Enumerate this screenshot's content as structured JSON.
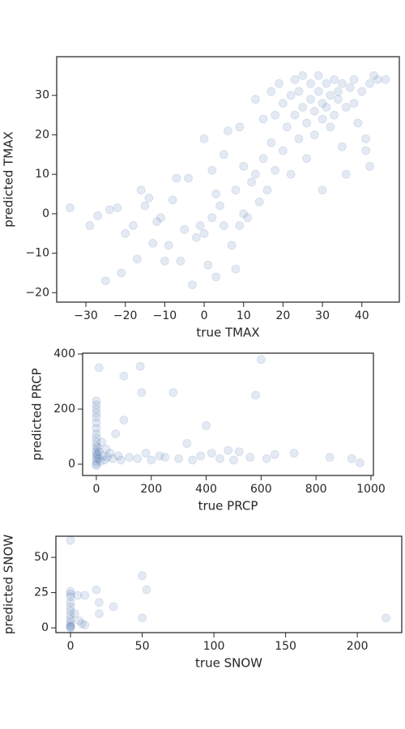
{
  "chart_data": [
    {
      "type": "scatter",
      "x_label": "true TMAX",
      "y_label": "predicted TMAX",
      "color": "#4c72b0",
      "xlim": [
        -37.4,
        49.5
      ],
      "ylim": [
        -22.4,
        39.8
      ],
      "xticks": [
        {
          "value": -30,
          "label": "−30"
        },
        {
          "value": -20,
          "label": "−20"
        },
        {
          "value": -10,
          "label": "−10"
        },
        0,
        10,
        20,
        30,
        40
      ],
      "yticks": [
        {
          "value": -20,
          "label": "−20"
        },
        {
          "value": -10,
          "label": "−10"
        },
        0,
        10,
        20,
        30
      ],
      "x": [
        -34,
        -29,
        -27,
        -25,
        -24,
        -22,
        -21,
        -20,
        -18,
        -17,
        -16,
        -15,
        -14,
        -13,
        -12,
        -11,
        -10,
        -9,
        -8,
        -7,
        -6,
        -5,
        -4,
        -3,
        -2,
        -1,
        0,
        0,
        1,
        2,
        2,
        3,
        3,
        4,
        5,
        5,
        6,
        7,
        8,
        8,
        9,
        9,
        10,
        10,
        11,
        12,
        13,
        13,
        14,
        15,
        15,
        16,
        17,
        17,
        18,
        18,
        19,
        20,
        20,
        21,
        22,
        22,
        23,
        23,
        24,
        24,
        25,
        25,
        26,
        26,
        27,
        27,
        28,
        28,
        29,
        29,
        30,
        30,
        30,
        31,
        31,
        32,
        32,
        33,
        33,
        34,
        34,
        35,
        35,
        36,
        37,
        38,
        38,
        39,
        40,
        41,
        42,
        43,
        44,
        46,
        42,
        41,
        36
      ],
      "y": [
        1.5,
        -3,
        -0.5,
        -17,
        1,
        1.5,
        -15,
        -5,
        -3,
        -11.5,
        6,
        2,
        4,
        -7.5,
        -2,
        -1,
        -12,
        -8,
        3.5,
        9,
        -12,
        -4,
        9,
        -18,
        -6,
        -3,
        19,
        -5,
        -13,
        -1,
        11,
        -16,
        5,
        2,
        -3,
        15,
        21,
        -8,
        -14,
        6,
        22,
        -3,
        0,
        12,
        -1,
        8,
        10,
        29,
        3,
        14,
        24,
        6,
        18,
        31,
        11,
        25,
        33,
        16,
        28,
        22,
        30,
        10,
        25,
        34,
        19,
        31,
        27,
        35,
        23,
        14,
        29,
        33,
        26,
        20,
        31,
        35,
        24,
        6,
        28,
        33,
        27,
        30,
        22,
        34,
        25,
        29,
        31,
        17,
        33,
        27,
        32,
        34,
        28,
        23,
        31,
        16,
        33,
        35,
        34,
        34,
        12,
        19,
        10
      ]
    },
    {
      "type": "scatter",
      "x_label": "true PRCP",
      "y_label": "predicted PRCP",
      "color": "#4c72b0",
      "xlim": [
        -50,
        1009
      ],
      "ylim": [
        -41,
        403
      ],
      "xticks": [
        0,
        200,
        400,
        600,
        800,
        1000
      ],
      "yticks": [
        0,
        200,
        400
      ],
      "x": [
        0,
        0,
        0,
        0,
        0,
        0,
        0,
        0,
        0,
        0,
        0,
        0,
        0,
        0,
        0,
        0,
        0,
        0,
        5,
        5,
        8,
        10,
        10,
        15,
        20,
        25,
        30,
        35,
        40,
        50,
        60,
        70,
        80,
        90,
        100,
        100,
        120,
        150,
        160,
        165,
        180,
        200,
        230,
        250,
        280,
        300,
        330,
        350,
        380,
        400,
        420,
        450,
        480,
        500,
        520,
        560,
        580,
        600,
        620,
        650,
        720,
        850,
        930,
        960
      ],
      "y": [
        230,
        215,
        200,
        185,
        170,
        150,
        130,
        110,
        95,
        80,
        65,
        50,
        40,
        30,
        20,
        10,
        0,
        -5,
        60,
        35,
        20,
        45,
        350,
        10,
        80,
        30,
        15,
        55,
        25,
        40,
        20,
        110,
        30,
        15,
        160,
        320,
        25,
        20,
        355,
        260,
        40,
        15,
        30,
        25,
        260,
        20,
        75,
        15,
        30,
        140,
        40,
        20,
        50,
        15,
        45,
        25,
        250,
        380,
        20,
        35,
        40,
        25,
        20,
        5
      ]
    },
    {
      "type": "scatter",
      "x_label": "true SNOW",
      "y_label": "predicted SNOW",
      "color": "#4c72b0",
      "xlim": [
        -10.2,
        231
      ],
      "ylim": [
        -3.4,
        65
      ],
      "xticks": [
        0,
        50,
        100,
        150,
        200
      ],
      "yticks": [
        0,
        25,
        50
      ],
      "x": [
        0,
        0,
        0,
        0,
        0,
        0,
        0,
        0,
        0,
        0,
        0,
        0,
        0,
        0,
        3,
        5,
        6,
        8,
        10,
        10,
        18,
        20,
        20,
        30,
        50,
        50,
        53,
        220
      ],
      "y": [
        62,
        26,
        24,
        22,
        18,
        15,
        12,
        9,
        6,
        4,
        2,
        1,
        0,
        0.5,
        10,
        23,
        5,
        3,
        23,
        2,
        27,
        18,
        10,
        15,
        37,
        7,
        27,
        7
      ]
    }
  ]
}
